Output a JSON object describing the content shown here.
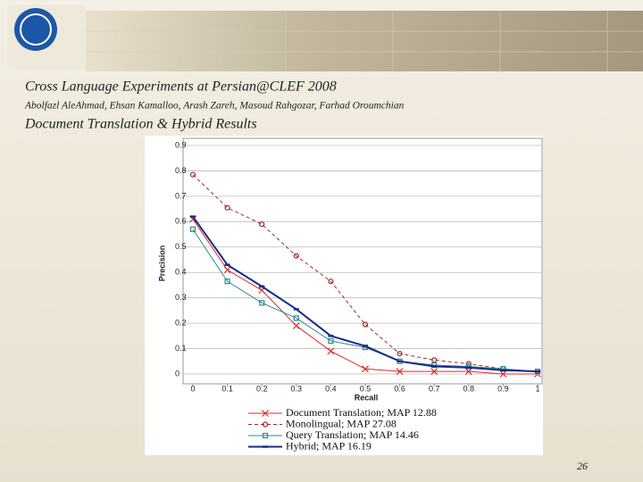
{
  "slide": {
    "title": "Cross Language Experiments at Persian@CLEF 2008",
    "authors": "Abolfazl AleAhmad, Ehsan Kamalloo, Arash Zareh, Masoud Rahgozar, Farhad Oroumchian",
    "subtitle": "Document Translation & Hybrid Results",
    "page_number": "26"
  },
  "chart_data": {
    "type": "line",
    "x_label": "Recall",
    "y_label": "Precision",
    "x": [
      0,
      0.1,
      0.2,
      0.3,
      0.4,
      0.5,
      0.6,
      0.7,
      0.8,
      0.9,
      1
    ],
    "series": [
      {
        "name": "Document Translation; MAP 12.88",
        "color": "#e02a2a",
        "marker": "x",
        "dash": "solid",
        "values": [
          0.61,
          0.41,
          0.33,
          0.19,
          0.09,
          0.02,
          0.01,
          0.01,
          0.01,
          0,
          0
        ]
      },
      {
        "name": "Monolingual; MAP 27.08",
        "color": "#a02828",
        "marker": "circle",
        "dash": "dashed",
        "values": [
          0.785,
          0.655,
          0.59,
          0.465,
          0.365,
          0.195,
          0.08,
          0.055,
          0.04,
          0.02,
          0.01
        ]
      },
      {
        "name": "Query Translation; MAP 14.46",
        "color": "#2a8a8a",
        "marker": "square",
        "dash": "solid",
        "values": [
          0.57,
          0.365,
          0.28,
          0.22,
          0.13,
          0.105,
          0.05,
          0.035,
          0.03,
          0.02,
          0.01
        ]
      },
      {
        "name": "Hybrid; MAP 16.19",
        "color": "#1a2a8a",
        "marker": "bar",
        "dash": "thick",
        "values": [
          0.62,
          0.43,
          0.345,
          0.255,
          0.15,
          0.11,
          0.05,
          0.03,
          0.025,
          0.015,
          0.01
        ]
      }
    ],
    "xlim": [
      0,
      1
    ],
    "xticks": [
      0,
      0.1,
      0.2,
      0.3,
      0.4,
      0.5,
      0.6,
      0.7,
      0.8,
      0.9,
      1
    ],
    "ylim": [
      0,
      0.9
    ],
    "yticks": [
      0,
      0.1,
      0.2,
      0.3,
      0.4,
      0.5,
      0.6,
      0.7,
      0.8,
      0.9
    ],
    "grid": true
  }
}
